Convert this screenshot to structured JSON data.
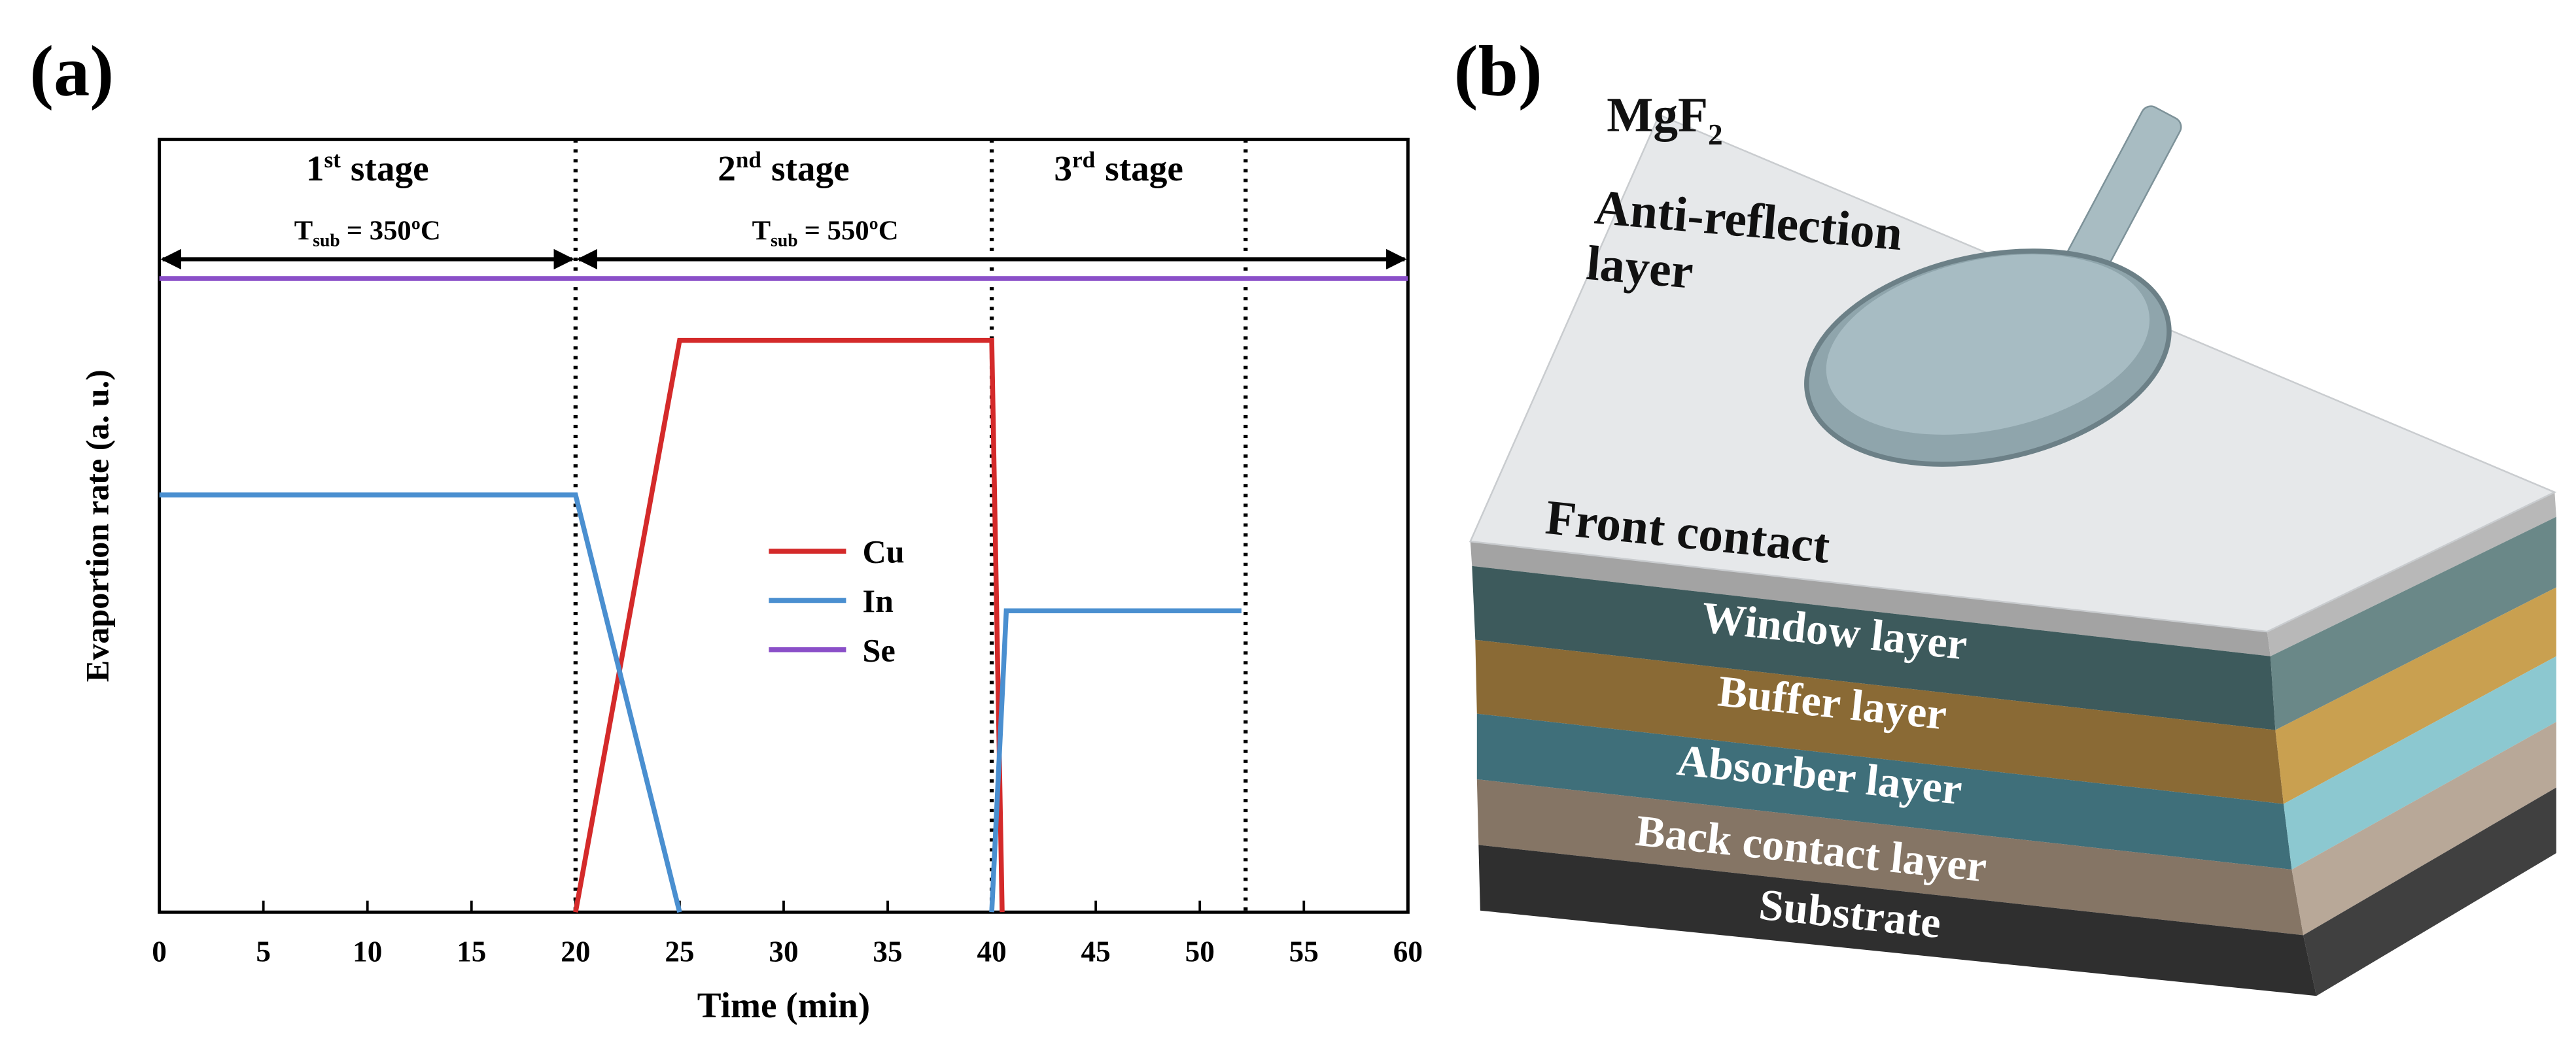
{
  "chart_data": {
    "type": "line",
    "panel_label": "(a)",
    "xlabel": "Time (min)",
    "ylabel": "Evaportion rate (a. u.)",
    "xlim": [
      0,
      60
    ],
    "xticks": [
      0,
      5,
      10,
      15,
      20,
      25,
      30,
      35,
      40,
      45,
      50,
      55,
      60
    ],
    "ylim": [
      0,
      10
    ],
    "series": [
      {
        "name": "Cu",
        "color": "#d42a2a",
        "x": [
          20,
          25,
          40,
          40.5
        ],
        "values": [
          0,
          7.4,
          7.4,
          0
        ]
      },
      {
        "name": "In",
        "color": "#4a8fd0",
        "x": [
          0,
          20,
          25,
          null,
          40,
          40.7,
          52
        ],
        "values": [
          5.4,
          5.4,
          0,
          null,
          0,
          3.9,
          3.9
        ]
      },
      {
        "name": "Se",
        "color": "#8a4fc8",
        "x": [
          0,
          60
        ],
        "values": [
          8.2,
          8.2
        ]
      }
    ],
    "stages": [
      {
        "number": "1",
        "suffix": "st",
        "text": "stage",
        "range": [
          0,
          20
        ]
      },
      {
        "number": "2",
        "suffix": "nd",
        "text": "stage",
        "range": [
          20,
          40
        ]
      },
      {
        "number": "3",
        "suffix": "rd",
        "text": "stage",
        "range": [
          40,
          52.2
        ]
      }
    ],
    "dividers": [
      20,
      40,
      52.2
    ],
    "temperatures": [
      {
        "symbol": "T",
        "subscript": "sub",
        "text": "= 350ºC",
        "range": [
          0,
          20
        ],
        "x": 10
      },
      {
        "symbol": "T",
        "subscript": "sub",
        "text": "= 550ºC",
        "range": [
          20,
          60
        ],
        "x": 32
      }
    ]
  },
  "diagram": {
    "panel_label": "(b)",
    "coating": {
      "formula": "MgF",
      "subscript": "2",
      "line1": "Anti-reflection",
      "line2": "layer"
    },
    "layers": [
      "Front contact",
      "Window layer",
      "Buffer layer",
      "Absorber layer",
      "Back contact layer",
      "Substrate"
    ]
  }
}
